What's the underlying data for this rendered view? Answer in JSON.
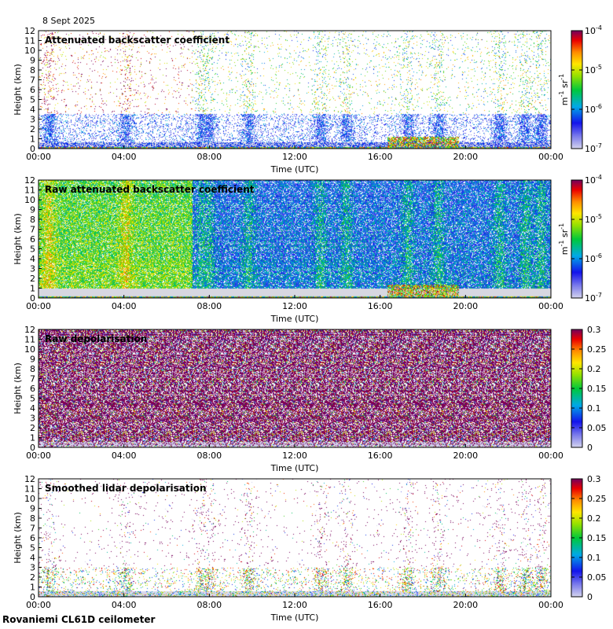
{
  "header": {
    "date": "8 Sept 2025",
    "site": "Rovaniemi CL61D ceilometer"
  },
  "chart_data": [
    {
      "type": "heatmap",
      "title": "Attenuated backscatter coefficient",
      "xlabel": "Time (UTC)",
      "ylabel": "Height (km)",
      "x_ticks": [
        "00:00",
        "04:00",
        "08:00",
        "12:00",
        "16:00",
        "20:00",
        "00:00"
      ],
      "y_ticks": [
        "0",
        "1",
        "2",
        "3",
        "4",
        "5",
        "6",
        "7",
        "8",
        "9",
        "10",
        "11",
        "12"
      ],
      "ylim": [
        0,
        12
      ],
      "xlim_hours": [
        0,
        24
      ],
      "colorbar": {
        "scale": "log",
        "ticks": [
          {
            "base": "10",
            "exp": "-4"
          },
          {
            "base": "10",
            "exp": "-5"
          },
          {
            "base": "10",
            "exp": "-6"
          },
          {
            "base": "10",
            "exp": "-7"
          }
        ],
        "unit_base": "m",
        "unit_exp1": "-1",
        "unit_mid": " sr",
        "unit_exp2": "-1"
      },
      "style": "attenuated"
    },
    {
      "type": "heatmap",
      "title": "Raw attenuated backscatter coefficient",
      "xlabel": "Time (UTC)",
      "ylabel": "Height (km)",
      "x_ticks": [
        "00:00",
        "04:00",
        "08:00",
        "12:00",
        "16:00",
        "20:00",
        "00:00"
      ],
      "y_ticks": [
        "0",
        "1",
        "2",
        "3",
        "4",
        "5",
        "6",
        "7",
        "8",
        "9",
        "10",
        "11",
        "12"
      ],
      "ylim": [
        0,
        12
      ],
      "xlim_hours": [
        0,
        24
      ],
      "colorbar": {
        "scale": "log",
        "ticks": [
          {
            "base": "10",
            "exp": "-4"
          },
          {
            "base": "10",
            "exp": "-5"
          },
          {
            "base": "10",
            "exp": "-6"
          },
          {
            "base": "10",
            "exp": "-7"
          }
        ],
        "unit_base": "m",
        "unit_exp1": "-1",
        "unit_mid": " sr",
        "unit_exp2": "-1"
      },
      "style": "raw"
    },
    {
      "type": "heatmap",
      "title": "Raw depolarisation",
      "xlabel": "Time (UTC)",
      "ylabel": "Height (km)",
      "x_ticks": [
        "00:00",
        "04:00",
        "08:00",
        "12:00",
        "16:00",
        "20:00",
        "00:00"
      ],
      "y_ticks": [
        "0",
        "1",
        "2",
        "3",
        "4",
        "5",
        "6",
        "7",
        "8",
        "9",
        "10",
        "11",
        "12"
      ],
      "ylim": [
        0,
        12
      ],
      "xlim_hours": [
        0,
        24
      ],
      "colorbar": {
        "scale": "linear",
        "ticks": [
          "0.3",
          "0.25",
          "0.2",
          "0.15",
          "0.1",
          "0.05",
          "0"
        ],
        "range": [
          0,
          0.3
        ]
      },
      "style": "rawdepol"
    },
    {
      "type": "heatmap",
      "title": "Smoothed lidar depolarisation",
      "xlabel": "Time (UTC)",
      "ylabel": "Height (km)",
      "x_ticks": [
        "00:00",
        "04:00",
        "08:00",
        "12:00",
        "16:00",
        "20:00",
        "00:00"
      ],
      "y_ticks": [
        "0",
        "1",
        "2",
        "3",
        "4",
        "5",
        "6",
        "7",
        "8",
        "9",
        "10",
        "11",
        "12"
      ],
      "ylim": [
        0,
        12
      ],
      "xlim_hours": [
        0,
        24
      ],
      "colorbar": {
        "scale": "linear",
        "ticks": [
          "0.3",
          "0.25",
          "0.2",
          "0.15",
          "0.1",
          "0.05",
          "0"
        ],
        "range": [
          0,
          0.3
        ]
      },
      "style": "smoothdepol"
    }
  ]
}
